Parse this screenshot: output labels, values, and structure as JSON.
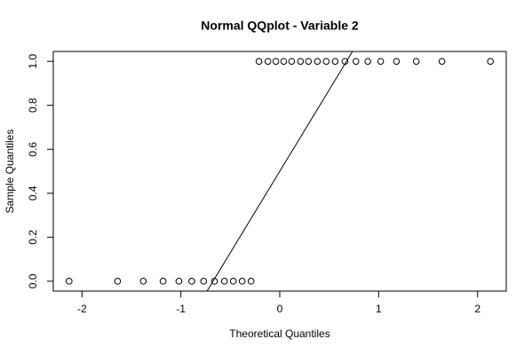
{
  "chart_data": {
    "type": "scatter",
    "title": "Normal QQplot - Variable 2",
    "x_label": "Theoretical Quantiles",
    "y_label": "Sample Quantiles",
    "x": [
      -2.13,
      -1.64,
      -1.38,
      -1.18,
      -1.02,
      -0.89,
      -0.77,
      -0.66,
      -0.56,
      -0.47,
      -0.38,
      -0.29,
      -0.21,
      -0.12,
      -0.04,
      0.04,
      0.12,
      0.21,
      0.29,
      0.38,
      0.47,
      0.56,
      0.66,
      0.77,
      0.89,
      1.02,
      1.18,
      1.38,
      1.64,
      2.13
    ],
    "values": [
      0,
      0,
      0,
      0,
      0,
      0,
      0,
      0,
      0,
      0,
      0,
      0,
      1,
      1,
      1,
      1,
      1,
      1,
      1,
      1,
      1,
      1,
      1,
      1,
      1,
      1,
      1,
      1,
      1,
      1
    ],
    "color": "#000000",
    "reference_line": {
      "intercept": 0.5,
      "slope": 0.741
    },
    "xlim": [
      -2.29,
      2.29
    ],
    "ylim": [
      -0.045,
      1.045
    ],
    "xticks": [
      -2,
      -1,
      0,
      1,
      2
    ],
    "yticks": [
      {
        "value": 0,
        "label": "0.0"
      },
      {
        "value": 0.2,
        "label": "0.2"
      },
      {
        "value": 0.4,
        "label": "0.4"
      },
      {
        "value": 0.6,
        "label": "0.6"
      },
      {
        "value": 0.8,
        "label": "0.8"
      },
      {
        "value": 1,
        "label": "1.0"
      }
    ],
    "grid": false
  }
}
